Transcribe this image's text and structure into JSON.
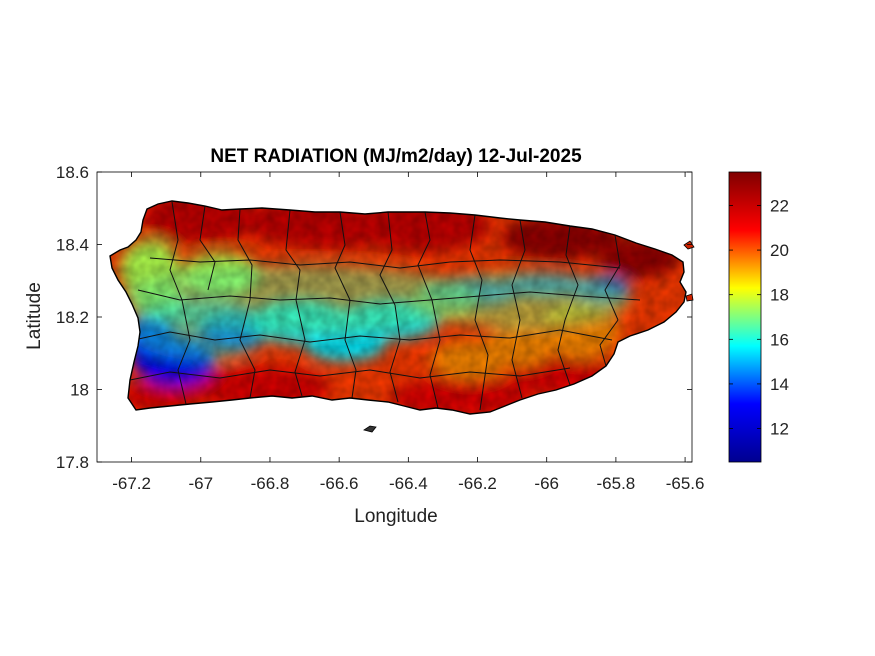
{
  "chart_data": {
    "type": "heatmap",
    "title": "NET RADIATION (MJ/m2/day) 12-Jul-2025",
    "xlabel": "Longitude",
    "ylabel": "Latitude",
    "xlim": [
      -67.3,
      -65.58
    ],
    "ylim": [
      17.8,
      18.6
    ],
    "x_ticks": [
      -67.2,
      -67,
      -66.8,
      -66.6,
      -66.4,
      -66.2,
      -66,
      -65.8,
      -65.6
    ],
    "x_tick_labels": [
      "-67.2",
      "-67",
      "-66.8",
      "-66.6",
      "-66.4",
      "-66.2",
      "-66",
      "-65.8",
      "-65.6"
    ],
    "y_ticks": [
      17.8,
      18,
      18.2,
      18.4,
      18.6
    ],
    "y_tick_labels": [
      "17.8",
      "18",
      "18.2",
      "18.4",
      "18.6"
    ],
    "colorbar": {
      "colormap": "jet",
      "range": [
        10.5,
        23.5
      ],
      "ticks": [
        12,
        14,
        16,
        18,
        20,
        22
      ],
      "tick_labels": [
        "12",
        "14",
        "16",
        "18",
        "20",
        "22"
      ]
    },
    "colormap_stops": [
      "#00008f",
      "#0000ff",
      "#00ffff",
      "#ffff00",
      "#ff0000",
      "#800000"
    ],
    "field_zones": [
      {
        "region": "north coast",
        "value": 22
      },
      {
        "region": "northeast corner",
        "value": 23
      },
      {
        "region": "south coast",
        "value": 21.5
      },
      {
        "region": "central-east valley band",
        "value": 14
      },
      {
        "region": "southwest interior",
        "value": 13
      },
      {
        "region": "central mountains",
        "value": 15.5
      },
      {
        "region": "western interior",
        "value": 17.5
      },
      {
        "region": "eastern interior",
        "value": 19.5
      }
    ]
  }
}
